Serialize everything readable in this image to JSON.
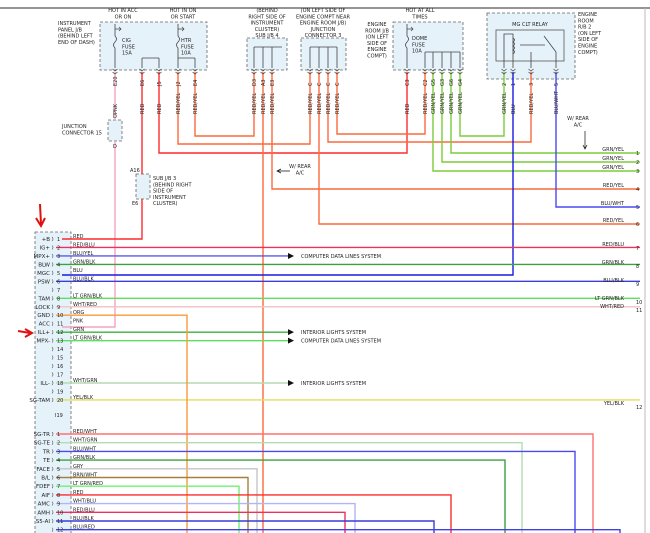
{
  "instrument_panel_jb": {
    "label": [
      "INSTRUMENT",
      "PANEL J/B",
      "(BEHIND LEFT",
      "END OF DASH)"
    ],
    "hot_acc": [
      "HOT IN ACC",
      "OR ON"
    ],
    "hot_on": [
      "HOT IN ON",
      "OR START"
    ],
    "cig_fuse": [
      "CIG",
      "FUSE",
      "15A"
    ],
    "htr_fuse": [
      "HTR",
      "FUSE",
      "10A"
    ],
    "pins": [
      {
        "id": "E20",
        "wire": "PNK"
      },
      {
        "id": "E6",
        "wire": "RED"
      },
      {
        "id": "J5",
        "wire": "RED"
      },
      {
        "id": "J2",
        "wire": "RED/YEL"
      },
      {
        "id": "E4",
        "wire": "RED/YEL"
      }
    ]
  },
  "sub_jb_4": {
    "label": [
      "(BEHIND",
      "RIGHT SIDE OF",
      "INSTRUMENT",
      "CLUSTER)",
      "SUB J/B 4"
    ],
    "pins": [
      {
        "id": "D3",
        "wire": "RED/YEL"
      },
      {
        "id": "A3",
        "wire": "RED/YEL"
      },
      {
        "id": "E3",
        "wire": "RED/YEL"
      }
    ]
  },
  "junction_connector_3": {
    "label": [
      "(ON LEFT SIDE OF",
      "ENGINE COMPT NEAR",
      "ENGINE ROOM J/B)",
      "JUNCTION",
      "CONNECTOR 3"
    ],
    "pins": [
      {
        "id": "C",
        "wire": "RED/YEL"
      },
      {
        "id": "C",
        "wire": "RED/YEL"
      },
      {
        "id": "C",
        "wire": "RED/YEL"
      },
      {
        "id": "C",
        "wire": "RED/YEL"
      }
    ]
  },
  "engine_room_jb": {
    "label": [
      "ENGINE",
      "ROOM J/B",
      "(ON LEFT",
      "SIDE OF",
      "ENGINE",
      "COMPT)"
    ],
    "hot": [
      "HOT AT ALL",
      "TIMES"
    ],
    "dome_fuse": [
      "DOME",
      "FUSE",
      "10A"
    ],
    "pins": [
      {
        "id": "C3",
        "wire": "RED"
      },
      {
        "id": "C2",
        "wire": "RED/YEL"
      },
      {
        "id": "G5",
        "wire": "GRN/YEL"
      },
      {
        "id": "G3",
        "wire": "GRN/YEL"
      },
      {
        "id": "G6",
        "wire": "GRN/YEL"
      },
      {
        "id": "G4",
        "wire": "GRN/YEL"
      }
    ]
  },
  "engine_room_rb2": {
    "label": [
      "ENGINE",
      "ROOM",
      "R/B 2",
      "(ON LEFT",
      "SIDE OF",
      "ENGINE",
      "COMPT)"
    ],
    "relay": "MG CLT RELAY",
    "pins": [
      {
        "id": "2",
        "wire": "GRN/YEL"
      },
      {
        "id": "1",
        "wire": "BLU"
      },
      {
        "id": "3",
        "wire": "RED/YEL"
      },
      {
        "id": "5",
        "wire": "BLU/WHT"
      }
    ]
  },
  "junction_connector_15": {
    "label": [
      "JUNCTION",
      "CONNECTOR 15"
    ],
    "pin_top": "D",
    "pin_bottom": "D"
  },
  "sub_jb_3": {
    "label": [
      "SUB J/B 3",
      "(BEHIND RIGHT",
      "SIDE OF",
      "INSTRUMENT",
      "CLUSTER)"
    ],
    "pin_top": "A16",
    "pin_bottom": "E6"
  },
  "rear_ac_notes": [
    [
      "W/ REAR",
      "A/C"
    ],
    [
      "W/ REAR",
      "A/C"
    ]
  ],
  "connector_a": {
    "id": "I19",
    "rows": [
      {
        "pin": "1",
        "name": "+B",
        "wire": "RED"
      },
      {
        "pin": "2",
        "name": "IG+",
        "wire": "RED/BLU"
      },
      {
        "pin": "3",
        "name": "MPX+",
        "wire": "BLU/YEL"
      },
      {
        "pin": "4",
        "name": "BLW",
        "wire": "GRN/BLK"
      },
      {
        "pin": "5",
        "name": "MGC",
        "wire": "BLU"
      },
      {
        "pin": "6",
        "name": "PSW",
        "wire": "BLU/BLK"
      },
      {
        "pin": "7",
        "name": "",
        "wire": ""
      },
      {
        "pin": "8",
        "name": "TAM",
        "wire": "LT GRN/BLK"
      },
      {
        "pin": "9",
        "name": "LOCK",
        "wire": "WHT/RED"
      },
      {
        "pin": "10",
        "name": "GND",
        "wire": "ORG"
      },
      {
        "pin": "11",
        "name": "ACC",
        "wire": "PNK"
      },
      {
        "pin": "12",
        "name": "ILL+",
        "wire": "GRN"
      },
      {
        "pin": "13",
        "name": "MPX-",
        "wire": "LT GRN/BLK"
      },
      {
        "pin": "14",
        "name": "",
        "wire": ""
      },
      {
        "pin": "15",
        "name": "",
        "wire": ""
      },
      {
        "pin": "16",
        "name": "",
        "wire": ""
      },
      {
        "pin": "17",
        "name": "",
        "wire": ""
      },
      {
        "pin": "18",
        "name": "ILL-",
        "wire": "WHT/GRN"
      },
      {
        "pin": "19",
        "name": "",
        "wire": ""
      },
      {
        "pin": "20",
        "name": "SG-TAM",
        "wire": "YEL/BLK"
      }
    ]
  },
  "connector_b": {
    "rows": [
      {
        "pin": "1",
        "name": "SG-TR",
        "wire": "RED/WHT"
      },
      {
        "pin": "2",
        "name": "SG-TE",
        "wire": "WHT/GRN"
      },
      {
        "pin": "3",
        "name": "TR",
        "wire": "BLU/WHT"
      },
      {
        "pin": "4",
        "name": "TE",
        "wire": "GRN/BLK"
      },
      {
        "pin": "5",
        "name": "FACE",
        "wire": "GRY"
      },
      {
        "pin": "6",
        "name": "B/L",
        "wire": "BRN/WHT"
      },
      {
        "pin": "7",
        "name": "FDEF",
        "wire": "LT GRN/RED"
      },
      {
        "pin": "8",
        "name": "AIF",
        "wire": "RED"
      },
      {
        "pin": "9",
        "name": "AMC",
        "wire": "WHT/BLU"
      },
      {
        "pin": "10",
        "name": "AMH",
        "wire": "RED/BLU"
      },
      {
        "pin": "11",
        "name": "S5-AI",
        "wire": "BLU/BLK"
      },
      {
        "pin": "12",
        "name": "",
        "wire": "BLU/RED"
      }
    ]
  },
  "system_refs": {
    "computer_data_lines": "COMPUTER DATA LINES SYSTEM",
    "interior_lights": "INTERIOR LIGHTS SYSTEM"
  },
  "right_terminals": [
    {
      "num": "1",
      "wire": "GRN/YEL"
    },
    {
      "num": "2",
      "wire": "GRN/YEL"
    },
    {
      "num": "3",
      "wire": "GRN/YEL"
    },
    {
      "num": "4",
      "wire": "RED/YEL"
    },
    {
      "num": "5",
      "wire": "BLU/WHT"
    },
    {
      "num": "6",
      "wire": "RED/YEL"
    },
    {
      "num": "7",
      "wire": "RED/BLU"
    },
    {
      "num": "8",
      "wire": "GRN/BLK"
    },
    {
      "num": "9",
      "wire": "BLU/BLK"
    },
    {
      "num": "10",
      "wire": "LT GRN/BLK"
    },
    {
      "num": "11",
      "wire": "WHT/RED"
    },
    {
      "num": "12",
      "wire": "YEL/BLK"
    }
  ],
  "annotation_color": "#e01010",
  "wire_colors": {
    "RED": "#ff2a2a",
    "PNK": "#f5a3c0",
    "RED/YEL": "#fa6a3c",
    "ORG": "#f99a3a",
    "GRN/YEL": "#7ccc38",
    "BLU": "#1a1ae0",
    "BLU/WHT": "#4a4af0",
    "RED/BLU": "#f0305a",
    "BLU/YEL": "#5a5ae6",
    "GRN/BLK": "#3ca03c",
    "BLU/BLK": "#3c3cd6",
    "LT GRN/BLK": "#5ee05e",
    "WHT/RED": "#f2c6c6",
    "GRN": "#3cb03c",
    "WHT/GRN": "#b4dcb0",
    "YEL/BLK": "#e4dc60",
    "RED/WHT": "#ff7070",
    "GRY": "#c4c4c4",
    "BRN/WHT": "#a48040",
    "LT GRN/RED": "#70f070",
    "WHT/BLU": "#b4b4f4",
    "BLU/RED": "#4040e6"
  }
}
